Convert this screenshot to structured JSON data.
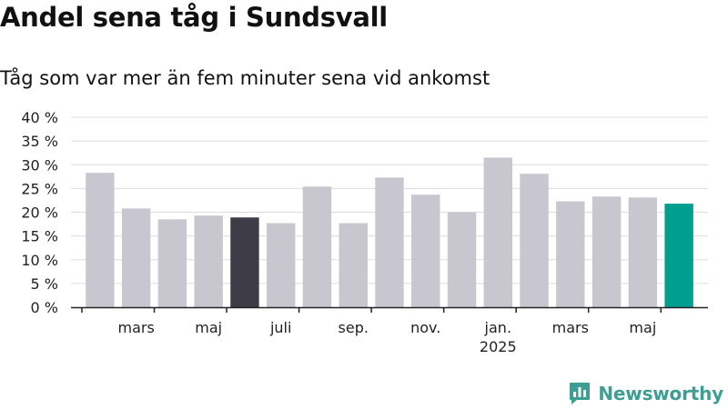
{
  "header": {
    "title": "Andel sena tåg i Sundsvall",
    "subtitle": "Tåg som var mer än fem minuter sena vid ankomst"
  },
  "branding": {
    "name": "Newsworthy",
    "icon": "newsworthy-logo-icon",
    "color": "#3d9e93"
  },
  "colors": {
    "bar_default": "#c8c7d0",
    "bar_highlight_dark": "#3e3d47",
    "bar_latest": "#009e8f",
    "gridline": "#dddddd",
    "axis": "#222222"
  },
  "chart_data": {
    "type": "bar",
    "title": "Andel sena tåg i Sundsvall",
    "subtitle": "Tåg som var mer än fem minuter sena vid ankomst",
    "xlabel": "",
    "ylabel": "",
    "unit": "%",
    "ylim": [
      0,
      40
    ],
    "yticks": [
      0,
      5,
      10,
      15,
      20,
      25,
      30,
      35,
      40
    ],
    "ytick_labels": [
      "0 %",
      "5 %",
      "10 %",
      "15 %",
      "20 %",
      "25 %",
      "30 %",
      "35 %",
      "40 %"
    ],
    "grid": true,
    "legend": "none",
    "x": [
      "2024-02",
      "2024-03",
      "2024-04",
      "2024-05",
      "2024-06",
      "2024-07",
      "2024-08",
      "2024-09",
      "2024-10",
      "2024-11",
      "2024-12",
      "2025-01",
      "2025-02",
      "2025-03",
      "2025-04",
      "2025-05",
      "2025-06"
    ],
    "values": [
      28.3,
      20.8,
      18.5,
      19.3,
      18.9,
      17.7,
      25.4,
      17.7,
      27.3,
      23.7,
      20.0,
      31.5,
      28.1,
      22.3,
      23.3,
      23.1,
      21.8
    ],
    "highlight": {
      "2024-06": "dark",
      "2025-06": "latest"
    },
    "xtick_labels": [
      {
        "at": "2024-03",
        "label": "mars",
        "sublabel": ""
      },
      {
        "at": "2024-05",
        "label": "maj",
        "sublabel": ""
      },
      {
        "at": "2024-07",
        "label": "juli",
        "sublabel": ""
      },
      {
        "at": "2024-09",
        "label": "sep.",
        "sublabel": ""
      },
      {
        "at": "2024-11",
        "label": "nov.",
        "sublabel": ""
      },
      {
        "at": "2025-01",
        "label": "jan.",
        "sublabel": "2025"
      },
      {
        "at": "2025-03",
        "label": "mars",
        "sublabel": ""
      },
      {
        "at": "2025-05",
        "label": "maj",
        "sublabel": ""
      }
    ]
  }
}
